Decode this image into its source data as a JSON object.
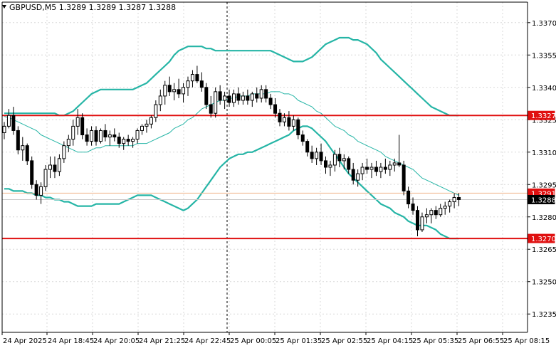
{
  "header": {
    "title": "GBPUSD,M5  1.3289 1.3289 1.3287 1.3288"
  },
  "colors": {
    "band": "#26b5a6",
    "level": "#e01010",
    "candle": "#000000",
    "grid": "#d8d8d8",
    "price_line": "#f0b38a",
    "marker": "#000000",
    "background": "#ffffff"
  },
  "chart_data": {
    "type": "candlestick",
    "symbol": "GBPUSD",
    "timeframe": "M5",
    "title": "GBPUSD,M5  1.3289 1.3289 1.3287 1.3288",
    "x_tick_labels": [
      "24 Apr 2025",
      "24 Apr 18:45",
      "24 Apr 20:05",
      "24 Apr 21:25",
      "24 Apr 22:45",
      "25 Apr 00:05",
      "25 Apr 01:35",
      "25 Apr 02:55",
      "25 Apr 04:15",
      "25 Apr 05:35",
      "25 Apr 06:55",
      "25 Apr 08:15"
    ],
    "y_tick_labels": [
      "1.3370",
      "1.3355",
      "1.3340",
      "1.3325",
      "1.3310",
      "1.3295",
      "1.3280",
      "1.3265",
      "1.3250",
      "1.3235"
    ],
    "y_ticks": [
      1.337,
      1.3355,
      1.334,
      1.3325,
      1.331,
      1.3295,
      1.328,
      1.3265,
      1.325,
      1.3235
    ],
    "ylim": [
      1.32265,
      1.33795
    ],
    "grid": true,
    "session_separator_after": "24 Apr 22:45",
    "horizontal_levels": [
      {
        "price": 1.3327,
        "label": "1.3327"
      },
      {
        "price": 1.327,
        "label": "1.3270"
      }
    ],
    "price_line": {
      "price": 1.3291,
      "label": "1.3291"
    },
    "current_price": {
      "price": 1.3288,
      "label": "1.3288"
    },
    "candles": [
      [
        1.3319,
        1.3324,
        1.3316,
        1.3322
      ],
      [
        1.3322,
        1.333,
        1.3321,
        1.3327
      ],
      [
        1.3327,
        1.3331,
        1.3318,
        1.332
      ],
      [
        1.332,
        1.3322,
        1.3309,
        1.3311
      ],
      [
        1.3311,
        1.3317,
        1.3306,
        1.3313
      ],
      [
        1.3313,
        1.3314,
        1.3304,
        1.3306
      ],
      [
        1.3306,
        1.3308,
        1.3293,
        1.3295
      ],
      [
        1.3295,
        1.3297,
        1.3288,
        1.329
      ],
      [
        1.329,
        1.3296,
        1.3286,
        1.3294
      ],
      [
        1.3294,
        1.3304,
        1.3292,
        1.3302
      ],
      [
        1.3302,
        1.3308,
        1.3298,
        1.3304
      ],
      [
        1.3304,
        1.3308,
        1.3298,
        1.3301
      ],
      [
        1.3301,
        1.3309,
        1.3299,
        1.3307
      ],
      [
        1.3307,
        1.3315,
        1.3305,
        1.3313
      ],
      [
        1.3313,
        1.3318,
        1.331,
        1.3316
      ],
      [
        1.3316,
        1.3325,
        1.3313,
        1.3322
      ],
      [
        1.3322,
        1.333,
        1.3318,
        1.3326
      ],
      [
        1.3326,
        1.3328,
        1.3316,
        1.3318
      ],
      [
        1.3318,
        1.3321,
        1.3313,
        1.3315
      ],
      [
        1.3315,
        1.3322,
        1.3313,
        1.332
      ],
      [
        1.332,
        1.3322,
        1.3313,
        1.3315
      ],
      [
        1.3315,
        1.3321,
        1.3314,
        1.332
      ],
      [
        1.332,
        1.3323,
        1.3315,
        1.3317
      ],
      [
        1.3317,
        1.332,
        1.3313,
        1.3318
      ],
      [
        1.3318,
        1.3321,
        1.3315,
        1.3317
      ],
      [
        1.3317,
        1.3319,
        1.3312,
        1.3314
      ],
      [
        1.3314,
        1.3317,
        1.3311,
        1.3316
      ],
      [
        1.3316,
        1.3318,
        1.3313,
        1.3315
      ],
      [
        1.3315,
        1.3317,
        1.3312,
        1.3316
      ],
      [
        1.3316,
        1.3321,
        1.3314,
        1.332
      ],
      [
        1.332,
        1.3323,
        1.3318,
        1.3322
      ],
      [
        1.3322,
        1.3325,
        1.3319,
        1.3323
      ],
      [
        1.3323,
        1.3327,
        1.3321,
        1.3326
      ],
      [
        1.3326,
        1.3334,
        1.3324,
        1.3332
      ],
      [
        1.3332,
        1.3339,
        1.3329,
        1.3336
      ],
      [
        1.3336,
        1.3343,
        1.3332,
        1.3341
      ],
      [
        1.3341,
        1.3345,
        1.3336,
        1.3338
      ],
      [
        1.3338,
        1.3342,
        1.3334,
        1.3339
      ],
      [
        1.3339,
        1.3344,
        1.3335,
        1.3337
      ],
      [
        1.3337,
        1.3342,
        1.3333,
        1.334
      ],
      [
        1.334,
        1.3345,
        1.3336,
        1.3343
      ],
      [
        1.3343,
        1.3348,
        1.334,
        1.3346
      ],
      [
        1.3346,
        1.335,
        1.3342,
        1.3343
      ],
      [
        1.3343,
        1.3347,
        1.3338,
        1.334
      ],
      [
        1.334,
        1.3342,
        1.333,
        1.3332
      ],
      [
        1.3332,
        1.3336,
        1.3326,
        1.3328
      ],
      [
        1.3328,
        1.334,
        1.3326,
        1.3338
      ],
      [
        1.3338,
        1.3341,
        1.3332,
        1.3334
      ],
      [
        1.3334,
        1.3338,
        1.333,
        1.3336
      ],
      [
        1.3336,
        1.3339,
        1.3331,
        1.3333
      ],
      [
        1.3333,
        1.3339,
        1.3331,
        1.3337
      ],
      [
        1.3337,
        1.334,
        1.3332,
        1.3334
      ],
      [
        1.3334,
        1.3338,
        1.3332,
        1.3336
      ],
      [
        1.3336,
        1.3339,
        1.3332,
        1.3334
      ],
      [
        1.3334,
        1.3338,
        1.3331,
        1.3337
      ],
      [
        1.3337,
        1.334,
        1.3333,
        1.3335
      ],
      [
        1.3335,
        1.3341,
        1.3333,
        1.3339
      ],
      [
        1.3339,
        1.3341,
        1.3333,
        1.3335
      ],
      [
        1.3335,
        1.3337,
        1.333,
        1.3332
      ],
      [
        1.3332,
        1.3335,
        1.3326,
        1.3328
      ],
      [
        1.3328,
        1.333,
        1.3322,
        1.3324
      ],
      [
        1.3324,
        1.3328,
        1.3322,
        1.3326
      ],
      [
        1.3326,
        1.3329,
        1.332,
        1.3322
      ],
      [
        1.3322,
        1.3327,
        1.332,
        1.3325
      ],
      [
        1.3325,
        1.3326,
        1.3316,
        1.3318
      ],
      [
        1.3318,
        1.332,
        1.3313,
        1.3315
      ],
      [
        1.3315,
        1.3316,
        1.3308,
        1.331
      ],
      [
        1.331,
        1.3313,
        1.3305,
        1.3307
      ],
      [
        1.3307,
        1.3312,
        1.3304,
        1.331
      ],
      [
        1.331,
        1.3314,
        1.3304,
        1.3306
      ],
      [
        1.3306,
        1.3308,
        1.33,
        1.3303
      ],
      [
        1.3303,
        1.3306,
        1.3299,
        1.3304
      ],
      [
        1.3304,
        1.3311,
        1.3301,
        1.3309
      ],
      [
        1.3309,
        1.3312,
        1.3303,
        1.3306
      ],
      [
        1.3306,
        1.3309,
        1.3302,
        1.3307
      ],
      [
        1.3307,
        1.3308,
        1.33,
        1.3302
      ],
      [
        1.3302,
        1.3305,
        1.3295,
        1.3297
      ],
      [
        1.3297,
        1.3302,
        1.3294,
        1.33
      ],
      [
        1.33,
        1.3305,
        1.3297,
        1.3303
      ],
      [
        1.3303,
        1.3307,
        1.33,
        1.3302
      ],
      [
        1.3302,
        1.3305,
        1.3298,
        1.3303
      ],
      [
        1.3303,
        1.3306,
        1.3299,
        1.3301
      ],
      [
        1.3301,
        1.3305,
        1.3298,
        1.3303
      ],
      [
        1.3303,
        1.3307,
        1.33,
        1.3302
      ],
      [
        1.3302,
        1.3306,
        1.3299,
        1.3304
      ],
      [
        1.3304,
        1.3307,
        1.3301,
        1.3305
      ],
      [
        1.3305,
        1.3318,
        1.3303,
        1.3304
      ],
      [
        1.3304,
        1.3306,
        1.329,
        1.3292
      ],
      [
        1.3292,
        1.3294,
        1.3284,
        1.3286
      ],
      [
        1.3286,
        1.3289,
        1.3281,
        1.3283
      ],
      [
        1.3283,
        1.3285,
        1.3271,
        1.3274
      ],
      [
        1.3274,
        1.3282,
        1.3273,
        1.328
      ],
      [
        1.328,
        1.3284,
        1.3277,
        1.3281
      ],
      [
        1.3281,
        1.3284,
        1.3277,
        1.3283
      ],
      [
        1.3283,
        1.3285,
        1.3279,
        1.3281
      ],
      [
        1.3281,
        1.3286,
        1.328,
        1.3284
      ],
      [
        1.3284,
        1.3287,
        1.3281,
        1.3285
      ],
      [
        1.3285,
        1.3288,
        1.3282,
        1.3287
      ],
      [
        1.3287,
        1.3291,
        1.3284,
        1.3289
      ],
      [
        1.3289,
        1.3291,
        1.3285,
        1.3288
      ]
    ],
    "series": [
      {
        "type": "line",
        "values": [
          1.33265,
          1.3326,
          1.3325,
          1.3324,
          1.3323,
          1.3322,
          1.3321,
          1.332,
          1.3318,
          1.3317,
          1.3316,
          1.3315,
          1.3314,
          1.3313,
          1.3312,
          1.3311,
          1.331,
          1.331,
          1.331,
          1.3311,
          1.3312,
          1.3312,
          1.3313,
          1.3313,
          1.3313,
          1.3313,
          1.3313,
          1.3313,
          1.3313,
          1.3314,
          1.3314,
          1.3314,
          1.3315,
          1.3316,
          1.3317,
          1.3318,
          1.3319,
          1.3321,
          1.3322,
          1.3323,
          1.3325,
          1.3326,
          1.3328,
          1.333,
          1.3331,
          1.3332,
          1.3333,
          1.3334,
          1.3334,
          1.3335,
          1.3335,
          1.3336,
          1.3336,
          1.3336,
          1.3337,
          1.3337,
          1.3337,
          1.3337,
          1.3338,
          1.3338,
          1.3338,
          1.3337,
          1.3337,
          1.3336,
          1.3334,
          1.3333,
          1.3332,
          1.3331,
          1.3329,
          1.3328,
          1.3326,
          1.3324,
          1.3322,
          1.3321,
          1.332,
          1.3318,
          1.3317,
          1.3315,
          1.3314,
          1.3313,
          1.3312,
          1.3311,
          1.331,
          1.3308,
          1.3307,
          1.3306,
          1.3305,
          1.3304,
          1.3303,
          1.3302,
          1.33,
          1.3298,
          1.3297,
          1.3296,
          1.3295,
          1.3294,
          1.3293,
          1.3292,
          1.3291,
          1.329
        ]
      },
      {
        "type": "line",
        "values": [
          1.3328,
          1.3328,
          1.3328,
          1.3328,
          1.3328,
          1.3328,
          1.3328,
          1.3328,
          1.3328,
          1.3328,
          1.3328,
          1.3328,
          1.3327,
          1.3327,
          1.3328,
          1.3329,
          1.3331,
          1.3333,
          1.3335,
          1.3337,
          1.3338,
          1.3339,
          1.3339,
          1.3339,
          1.3339,
          1.3339,
          1.3339,
          1.3339,
          1.3339,
          1.334,
          1.3341,
          1.3342,
          1.3344,
          1.3346,
          1.3348,
          1.335,
          1.3352,
          1.3355,
          1.3357,
          1.3358,
          1.3359,
          1.3359,
          1.3359,
          1.3359,
          1.3358,
          1.3358,
          1.3357,
          1.3357,
          1.3357,
          1.3357,
          1.3357,
          1.3357,
          1.3357,
          1.3357,
          1.3357,
          1.3357,
          1.3357,
          1.3357,
          1.3357,
          1.3356,
          1.3355,
          1.3354,
          1.3353,
          1.3352,
          1.3352,
          1.3352,
          1.3353,
          1.3354,
          1.3356,
          1.3358,
          1.336,
          1.3361,
          1.3362,
          1.3363,
          1.3363,
          1.3363,
          1.3362,
          1.3362,
          1.3361,
          1.336,
          1.3358,
          1.3356,
          1.3353,
          1.3351,
          1.3349,
          1.3347,
          1.3345,
          1.3343,
          1.3341,
          1.3339,
          1.3337,
          1.3335,
          1.3333,
          1.3331,
          1.333,
          1.3329,
          1.3328,
          1.3327,
          1.3327,
          1.3327
        ]
      },
      {
        "type": "line",
        "values": [
          1.3293,
          1.3293,
          1.3292,
          1.3292,
          1.3292,
          1.3291,
          1.3291,
          1.329,
          1.329,
          1.3289,
          1.3289,
          1.3288,
          1.3288,
          1.3287,
          1.3287,
          1.3286,
          1.3285,
          1.3285,
          1.3285,
          1.3285,
          1.3286,
          1.3286,
          1.3286,
          1.3286,
          1.3286,
          1.3286,
          1.3287,
          1.3288,
          1.3289,
          1.329,
          1.329,
          1.329,
          1.329,
          1.3289,
          1.3288,
          1.3287,
          1.3286,
          1.3285,
          1.3284,
          1.3283,
          1.3284,
          1.3286,
          1.3288,
          1.3291,
          1.3294,
          1.3297,
          1.33,
          1.3303,
          1.3305,
          1.3307,
          1.3308,
          1.3309,
          1.3309,
          1.331,
          1.331,
          1.3311,
          1.3312,
          1.3313,
          1.3314,
          1.3315,
          1.3316,
          1.3317,
          1.3318,
          1.332,
          1.3321,
          1.3322,
          1.3322,
          1.3321,
          1.3319,
          1.3317,
          1.3315,
          1.3312,
          1.3309,
          1.3306,
          1.3303,
          1.33,
          1.3298,
          1.3296,
          1.3294,
          1.3292,
          1.329,
          1.3288,
          1.3286,
          1.3285,
          1.3284,
          1.3282,
          1.3281,
          1.328,
          1.3278,
          1.3277,
          1.3276,
          1.3276,
          1.3276,
          1.3275,
          1.3274,
          1.3272,
          1.3271,
          1.327,
          1.327,
          1.327
        ]
      }
    ]
  }
}
